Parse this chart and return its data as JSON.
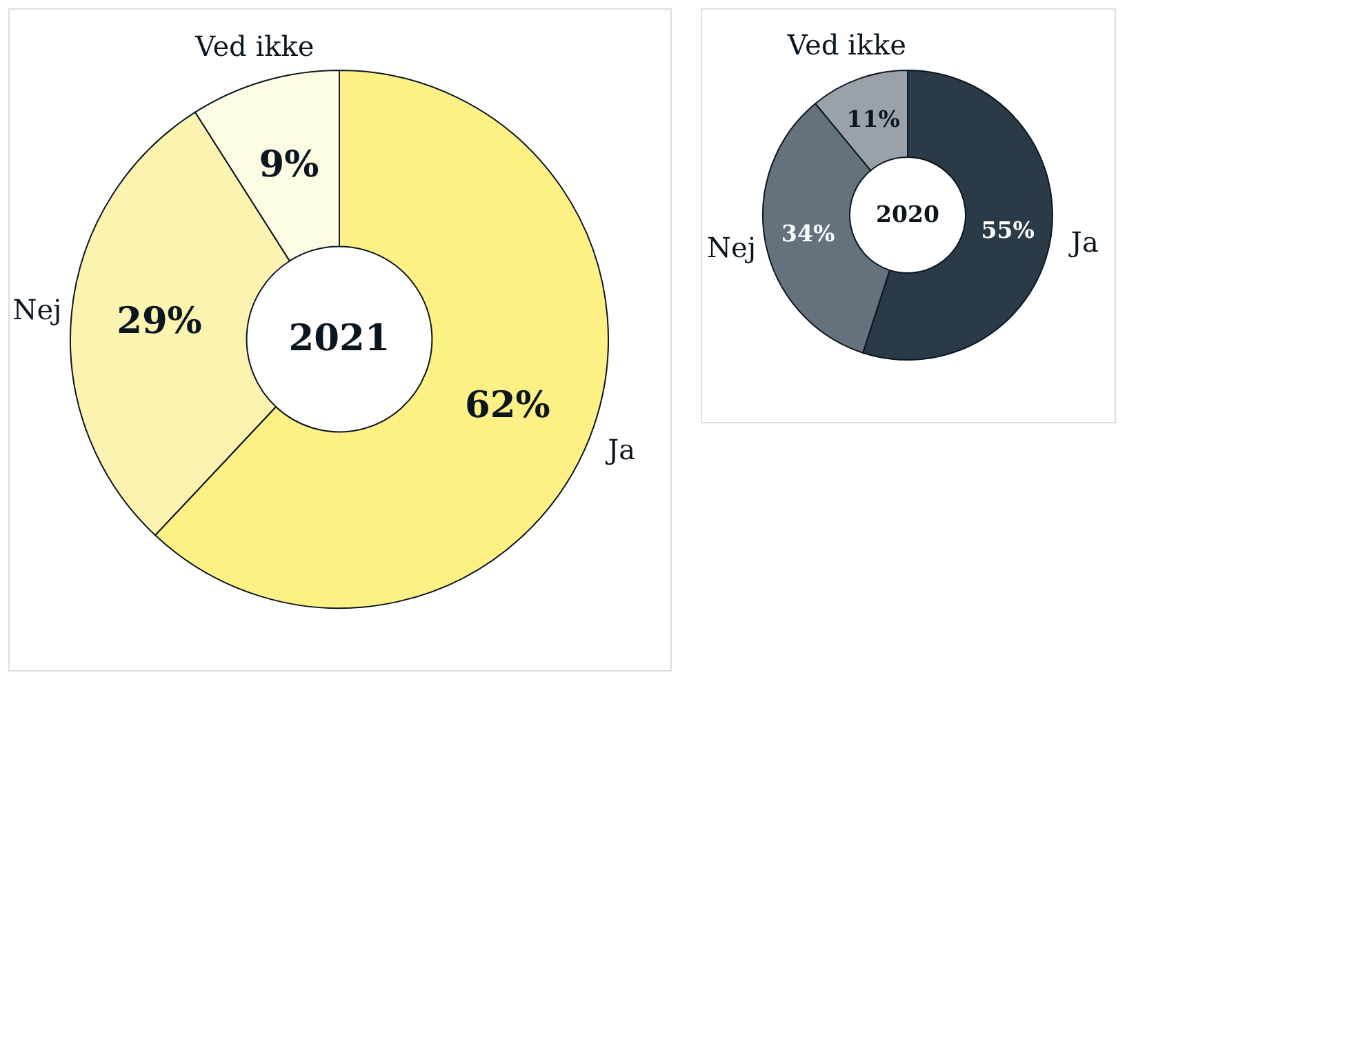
{
  "chart_data": [
    {
      "type": "donut",
      "title": "2021",
      "categories": [
        "Ja",
        "Nej",
        "Ved ikke"
      ],
      "values": [
        62,
        29,
        9
      ],
      "value_labels": [
        "62%",
        "29%",
        "9%"
      ],
      "colors": [
        "#fdf084",
        "#fdf3b0",
        "#fefbe4"
      ]
    },
    {
      "type": "donut",
      "title": "2020",
      "categories": [
        "Ja",
        "Nej",
        "Ved ikke"
      ],
      "values": [
        55,
        34,
        11
      ],
      "value_labels": [
        "55%",
        "34%",
        "11%"
      ],
      "colors": [
        "#2a3a47",
        "#65717d",
        "#9aa1a9"
      ]
    }
  ]
}
